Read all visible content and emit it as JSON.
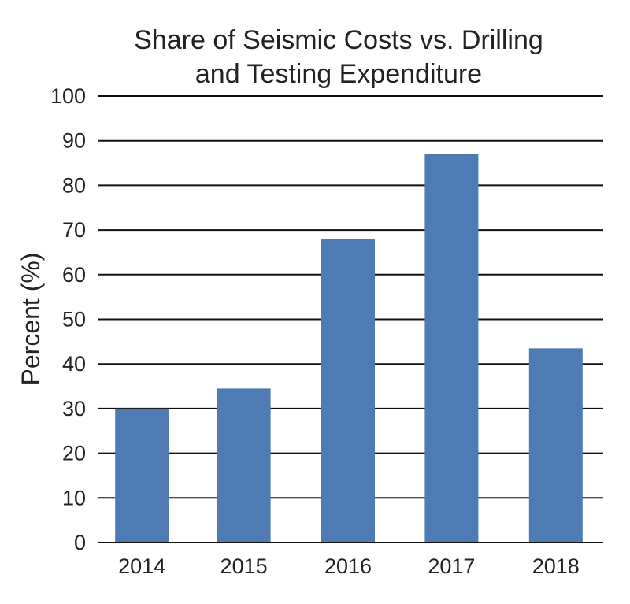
{
  "chart_data": {
    "type": "bar",
    "title_lines": [
      "Share of Seismic Costs vs. Drilling",
      "and Testing Expenditure"
    ],
    "title": "Share of Seismic Costs vs. Drilling and Testing Expenditure",
    "xlabel": "",
    "ylabel": "Percent (%)",
    "categories": [
      "2014",
      "2015",
      "2016",
      "2017",
      "2018"
    ],
    "values": [
      30,
      34.5,
      68,
      87,
      43.5
    ],
    "ylim": [
      0,
      100
    ],
    "yticks": [
      0,
      10,
      20,
      30,
      40,
      50,
      60,
      70,
      80,
      90,
      100
    ],
    "grid": true,
    "legend": "none",
    "bar_color": "#4e7bb4",
    "grid_color": "#111111"
  }
}
